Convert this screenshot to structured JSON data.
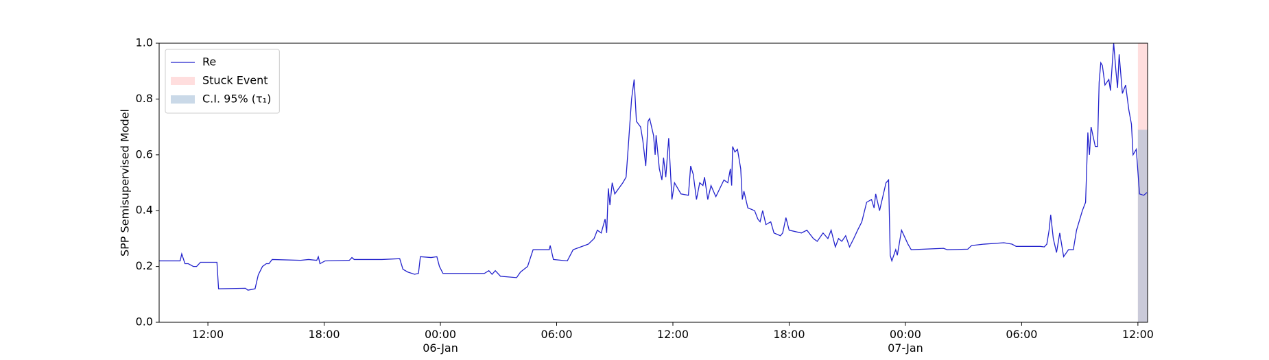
{
  "chart_data": {
    "type": "line",
    "ylabel": "SPP Semisupervised Model",
    "xlim": [
      "05-Jan 09:29",
      "07-Jan 12:30"
    ],
    "xticks": [
      {
        "value": "05-Jan 12:00",
        "label": "12:00"
      },
      {
        "value": "05-Jan 18:00",
        "label": "18:00"
      },
      {
        "value": "06-Jan 00:00",
        "label": "00:00\n06-Jan"
      },
      {
        "value": "06-Jan 06:00",
        "label": "06:00"
      },
      {
        "value": "06-Jan 12:00",
        "label": "12:00"
      },
      {
        "value": "06-Jan 18:00",
        "label": "18:00"
      },
      {
        "value": "07-Jan 00:00",
        "label": "00:00\n07-Jan"
      },
      {
        "value": "07-Jan 06:00",
        "label": "06:00"
      },
      {
        "value": "07-Jan 12:00",
        "label": "12:00"
      }
    ],
    "ylim": [
      0,
      1
    ],
    "yticks": [
      {
        "value": 0,
        "label": "0.0"
      },
      {
        "value": 0.2,
        "label": "0.2"
      },
      {
        "value": 0.4,
        "label": "0.4"
      },
      {
        "value": 0.6,
        "label": "0.6"
      },
      {
        "value": 0.8,
        "label": "0.8"
      },
      {
        "value": 1,
        "label": "1.0"
      }
    ],
    "legend": "upper left",
    "x": [
      "05-Jan 09:30",
      "05-Jan 10:34",
      "05-Jan 10:39",
      "05-Jan 10:49",
      "05-Jan 10:59",
      "05-Jan 11:15",
      "05-Jan 11:25",
      "05-Jan 11:37",
      "05-Jan 12:28",
      "05-Jan 12:33",
      "05-Jan 13:56",
      "05-Jan 14:04",
      "05-Jan 14:26",
      "05-Jan 14:36",
      "05-Jan 14:49",
      "05-Jan 15:01",
      "05-Jan 15:09",
      "05-Jan 15:19",
      "05-Jan 16:47",
      "05-Jan 17:12",
      "05-Jan 17:37",
      "05-Jan 17:42",
      "05-Jan 17:47",
      "05-Jan 18:03",
      "05-Jan 19:18",
      "05-Jan 19:26",
      "05-Jan 19:33",
      "05-Jan 20:59",
      "05-Jan 21:54",
      "05-Jan 22:04",
      "05-Jan 22:19",
      "05-Jan 22:40",
      "05-Jan 22:52",
      "05-Jan 22:58",
      "05-Jan 23:31",
      "05-Jan 23:49",
      "05-Jan 23:57",
      "06-Jan 00:08",
      "06-Jan 02:16",
      "06-Jan 02:30",
      "06-Jan 02:40",
      "06-Jan 02:50",
      "06-Jan 03:06",
      "06-Jan 03:56",
      "06-Jan 04:08",
      "06-Jan 04:30",
      "06-Jan 04:47",
      "06-Jan 05:37",
      "06-Jan 05:40",
      "06-Jan 05:50",
      "06-Jan 06:33",
      "06-Jan 06:51",
      "06-Jan 07:38",
      "06-Jan 07:56",
      "06-Jan 08:06",
      "06-Jan 08:18",
      "06-Jan 08:30",
      "06-Jan 08:35",
      "06-Jan 08:40",
      "06-Jan 08:45",
      "06-Jan 08:52",
      "06-Jan 09:00",
      "06-Jan 09:25",
      "06-Jan 09:35",
      "06-Jan 09:40",
      "06-Jan 09:52",
      "06-Jan 10:00",
      "06-Jan 10:07",
      "06-Jan 10:20",
      "06-Jan 10:27",
      "06-Jan 10:36",
      "06-Jan 10:43",
      "06-Jan 10:48",
      "06-Jan 11:00",
      "06-Jan 11:05",
      "06-Jan 11:08",
      "06-Jan 11:18",
      "06-Jan 11:26",
      "06-Jan 11:31",
      "06-Jan 11:38",
      "06-Jan 11:47",
      "06-Jan 11:57",
      "06-Jan 12:05",
      "06-Jan 12:25",
      "06-Jan 12:48",
      "06-Jan 12:55",
      "06-Jan 13:03",
      "06-Jan 13:13",
      "06-Jan 13:23",
      "06-Jan 13:33",
      "06-Jan 13:38",
      "06-Jan 13:48",
      "06-Jan 13:58",
      "06-Jan 14:13",
      "06-Jan 14:38",
      "06-Jan 14:50",
      "06-Jan 14:58",
      "06-Jan 15:02",
      "06-Jan 15:05",
      "06-Jan 15:12",
      "06-Jan 15:20",
      "06-Jan 15:30",
      "06-Jan 15:35",
      "06-Jan 15:40",
      "06-Jan 15:52",
      "06-Jan 16:13",
      "06-Jan 16:23",
      "06-Jan 16:30",
      "06-Jan 16:38",
      "06-Jan 16:48",
      "06-Jan 17:03",
      "06-Jan 17:13",
      "06-Jan 17:33",
      "06-Jan 17:40",
      "06-Jan 17:50",
      "06-Jan 18:00",
      "06-Jan 18:38",
      "06-Jan 18:55",
      "06-Jan 19:15",
      "06-Jan 19:27",
      "06-Jan 19:45",
      "06-Jan 20:00",
      "06-Jan 20:10",
      "06-Jan 20:23",
      "06-Jan 20:33",
      "06-Jan 20:43",
      "06-Jan 20:55",
      "06-Jan 21:07",
      "06-Jan 21:20",
      "06-Jan 21:32",
      "06-Jan 21:45",
      "06-Jan 22:00",
      "06-Jan 22:15",
      "06-Jan 22:23",
      "06-Jan 22:28",
      "06-Jan 22:40",
      "06-Jan 22:50",
      "06-Jan 23:00",
      "06-Jan 23:08",
      "06-Jan 23:13",
      "06-Jan 23:18",
      "06-Jan 23:30",
      "06-Jan 23:35",
      "06-Jan 23:48",
      "07-Jan 00:08",
      "07-Jan 00:18",
      "07-Jan 01:58",
      "07-Jan 02:10",
      "07-Jan 03:13",
      "07-Jan 03:25",
      "07-Jan 04:03",
      "07-Jan 05:05",
      "07-Jan 05:30",
      "07-Jan 05:43",
      "07-Jan 06:58",
      "07-Jan 07:10",
      "07-Jan 07:18",
      "07-Jan 07:25",
      "07-Jan 07:30",
      "07-Jan 07:38",
      "07-Jan 07:48",
      "07-Jan 07:58",
      "07-Jan 08:10",
      "07-Jan 08:25",
      "07-Jan 08:40",
      "07-Jan 08:50",
      "07-Jan 09:08",
      "07-Jan 09:18",
      "07-Jan 09:25",
      "07-Jan 09:30",
      "07-Jan 09:35",
      "07-Jan 09:48",
      "07-Jan 09:55",
      "07-Jan 10:00",
      "07-Jan 10:05",
      "07-Jan 10:10",
      "07-Jan 10:18",
      "07-Jan 10:30",
      "07-Jan 10:35",
      "07-Jan 10:45",
      "07-Jan 10:52",
      "07-Jan 10:57",
      "07-Jan 11:02",
      "07-Jan 11:12",
      "07-Jan 11:22",
      "07-Jan 11:32",
      "07-Jan 11:40",
      "07-Jan 11:45",
      "07-Jan 11:55",
      "07-Jan 12:05",
      "07-Jan 12:18",
      "07-Jan 12:28"
    ],
    "series": [
      {
        "name": "Re",
        "color": "#2222cc",
        "values": [
          0.22,
          0.22,
          0.245,
          0.21,
          0.21,
          0.2,
          0.2,
          0.215,
          0.215,
          0.12,
          0.122,
          0.115,
          0.12,
          0.17,
          0.2,
          0.21,
          0.21,
          0.225,
          0.222,
          0.225,
          0.222,
          0.235,
          0.21,
          0.22,
          0.222,
          0.232,
          0.225,
          0.225,
          0.228,
          0.19,
          0.18,
          0.172,
          0.175,
          0.235,
          0.232,
          0.235,
          0.2,
          0.175,
          0.175,
          0.185,
          0.172,
          0.185,
          0.165,
          0.16,
          0.18,
          0.2,
          0.26,
          0.26,
          0.275,
          0.225,
          0.22,
          0.26,
          0.28,
          0.3,
          0.33,
          0.32,
          0.37,
          0.32,
          0.48,
          0.42,
          0.5,
          0.46,
          0.5,
          0.52,
          0.6,
          0.8,
          0.87,
          0.72,
          0.7,
          0.65,
          0.56,
          0.72,
          0.73,
          0.67,
          0.6,
          0.67,
          0.55,
          0.51,
          0.59,
          0.52,
          0.66,
          0.44,
          0.5,
          0.46,
          0.455,
          0.56,
          0.53,
          0.44,
          0.5,
          0.49,
          0.52,
          0.44,
          0.49,
          0.45,
          0.51,
          0.5,
          0.55,
          0.49,
          0.63,
          0.61,
          0.62,
          0.55,
          0.44,
          0.47,
          0.41,
          0.4,
          0.37,
          0.36,
          0.4,
          0.35,
          0.36,
          0.32,
          0.31,
          0.32,
          0.375,
          0.33,
          0.32,
          0.33,
          0.3,
          0.29,
          0.32,
          0.3,
          0.33,
          0.27,
          0.3,
          0.29,
          0.31,
          0.27,
          0.3,
          0.33,
          0.36,
          0.43,
          0.44,
          0.41,
          0.46,
          0.4,
          0.45,
          0.5,
          0.51,
          0.24,
          0.22,
          0.26,
          0.24,
          0.33,
          0.28,
          0.26,
          0.265,
          0.26,
          0.262,
          0.275,
          0.28,
          0.285,
          0.28,
          0.272,
          0.272,
          0.27,
          0.28,
          0.33,
          0.385,
          0.3,
          0.25,
          0.32,
          0.235,
          0.26,
          0.26,
          0.33,
          0.4,
          0.43,
          0.68,
          0.6,
          0.7,
          0.63,
          0.63,
          0.86,
          0.93,
          0.92,
          0.85,
          0.87,
          0.83,
          1.0,
          0.9,
          0.84,
          0.96,
          0.82,
          0.85,
          0.76,
          0.71,
          0.6,
          0.62,
          0.46,
          0.455,
          0.465
        ]
      }
    ],
    "spans": [
      {
        "name": "Stuck Event",
        "color": "#ffdede",
        "x": [
          "07-Jan 12:00",
          "07-Jan 12:30"
        ],
        "y": [
          0,
          1
        ]
      },
      {
        "name": "C.I. 95% (τ₁)",
        "color": "#9fb9d6",
        "x": [
          "07-Jan 12:00",
          "07-Jan 12:30"
        ],
        "y": [
          0,
          0.69
        ]
      }
    ]
  }
}
